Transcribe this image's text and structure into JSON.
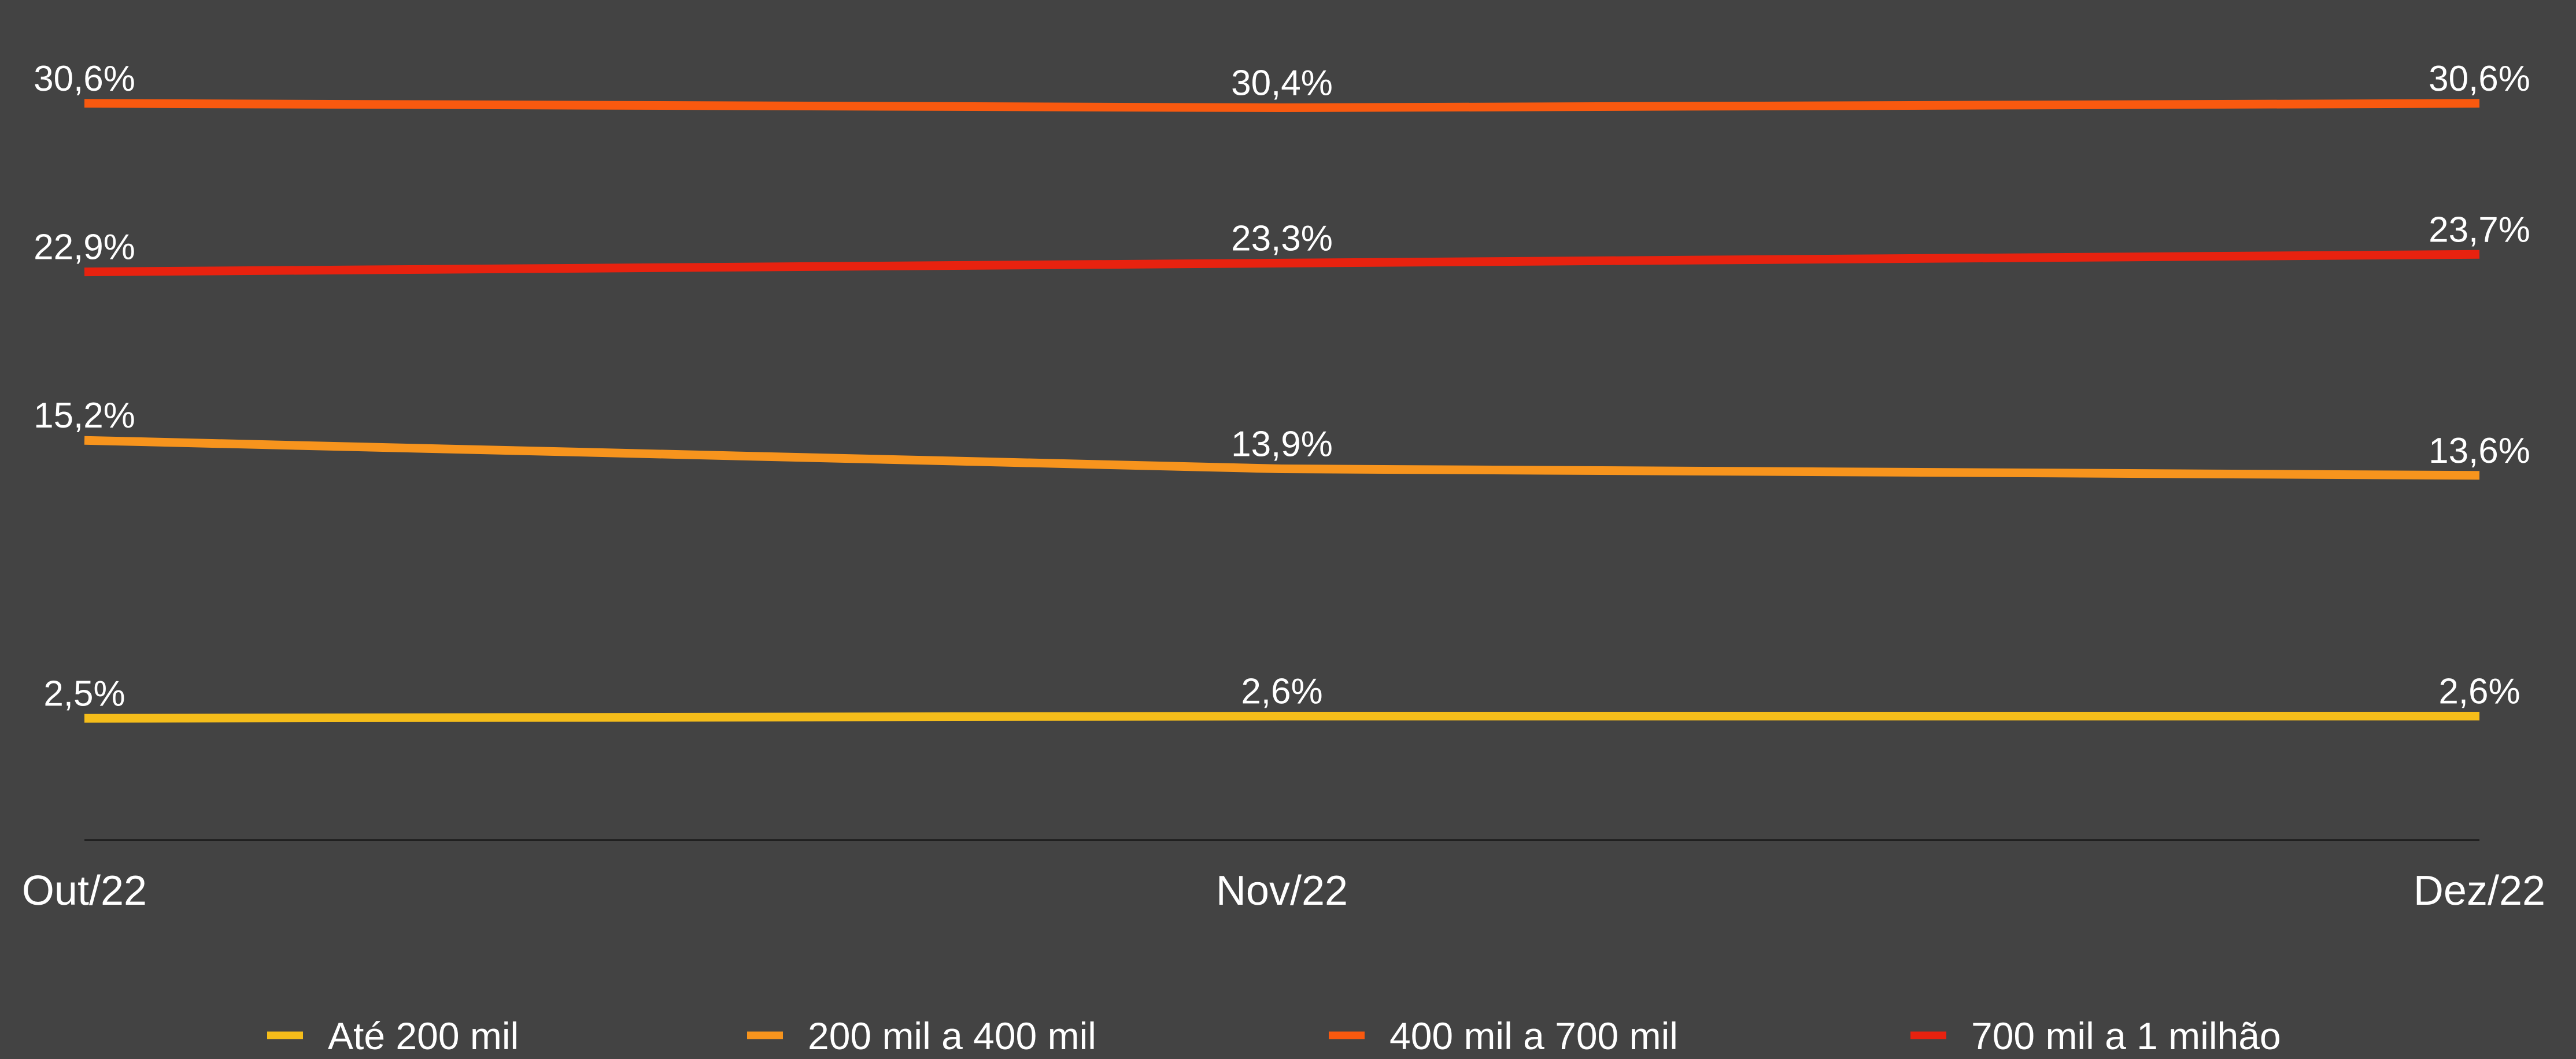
{
  "chart_data": {
    "type": "line",
    "categories": [
      "Out/22",
      "Nov/22",
      "Dez/22"
    ],
    "ylim": [
      0,
      33
    ],
    "grid": false,
    "legend_position": "bottom",
    "series": [
      {
        "name": "Até 200 mil",
        "color": "#F5BD1A",
        "values": [
          2.5,
          2.6,
          2.6
        ],
        "labels": [
          "2,5%",
          "2,6%",
          "2,6%"
        ]
      },
      {
        "name": "200 mil a 400 mil",
        "color": "#F7941D",
        "values": [
          15.2,
          13.9,
          13.6
        ],
        "labels": [
          "15,2%",
          "13,9%",
          "13,6%"
        ]
      },
      {
        "name": "400 mil a 700 mil",
        "color": "#F9590F",
        "values": [
          30.6,
          30.4,
          30.6
        ],
        "labels": [
          "30,6%",
          "30,4%",
          "30,6%"
        ]
      },
      {
        "name": "700 mil a 1 milhão",
        "color": "#E8220F",
        "values": [
          22.9,
          23.3,
          23.7
        ],
        "labels": [
          "22,9%",
          "23,3%",
          "23,7%"
        ]
      }
    ],
    "colors": {
      "background": "#434343",
      "axis": "#1A1A1A",
      "text": "#FFFFFF"
    }
  }
}
